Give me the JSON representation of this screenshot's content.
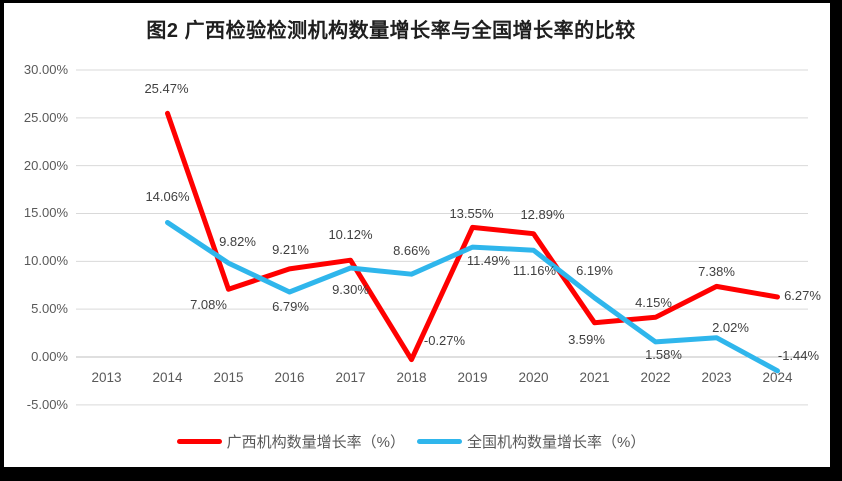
{
  "title": "图2 广西检验检测机构数量增长率与全国增长率的比较",
  "colors": {
    "series_guangxi": "#FF0000",
    "series_national": "#2FB6EC",
    "gridline": "#D9D9D9",
    "zero_line": "#BFBFBF",
    "axis_text": "#595959",
    "data_label_text": "#404040",
    "title_text": "#1F1F1F",
    "frame": "#000000"
  },
  "chart_data": {
    "type": "line",
    "title": "图2 广西检验检测机构数量增长率与全国增长率的比较",
    "categories": [
      "2013",
      "2014",
      "2015",
      "2016",
      "2017",
      "2018",
      "2019",
      "2020",
      "2021",
      "2022",
      "2023",
      "2024"
    ],
    "series": [
      {
        "name": "广西机构数量增长率（%）",
        "color": "#FF0000",
        "start_index": 1,
        "values": [
          25.47,
          7.08,
          9.21,
          10.12,
          -0.27,
          13.55,
          12.89,
          3.59,
          4.15,
          7.38,
          6.27
        ],
        "labels": [
          "25.47%",
          "7.08%",
          "9.21%",
          "10.12%",
          "-0.27%",
          "13.55%",
          "12.89%",
          "3.59%",
          "4.15%",
          "7.38%",
          "6.27%"
        ]
      },
      {
        "name": "全国机构数量增长率（%）",
        "color": "#2FB6EC",
        "start_index": 1,
        "values": [
          14.06,
          9.82,
          6.79,
          9.3,
          8.66,
          11.49,
          11.16,
          6.19,
          1.58,
          2.02,
          -1.44
        ],
        "labels": [
          "14.06%",
          "9.82%",
          "6.79%",
          "9.30%",
          "8.66%",
          "11.49%",
          "11.16%",
          "6.19%",
          "1.58%",
          "2.02%",
          "-1.44%"
        ]
      }
    ],
    "y_ticks": [
      {
        "label": "30.00%",
        "value": 30
      },
      {
        "label": "25.00%",
        "value": 25
      },
      {
        "label": "20.00%",
        "value": 20
      },
      {
        "label": "15.00%",
        "value": 15
      },
      {
        "label": "10.00%",
        "value": 10
      },
      {
        "label": "5.00%",
        "value": 5
      },
      {
        "label": "0.00%",
        "value": 0
      },
      {
        "label": "-5.00%",
        "value": -5
      }
    ],
    "ylim": [
      -5,
      30
    ],
    "xlabel": "",
    "ylabel": "",
    "grid": true,
    "legend_position": "bottom"
  }
}
